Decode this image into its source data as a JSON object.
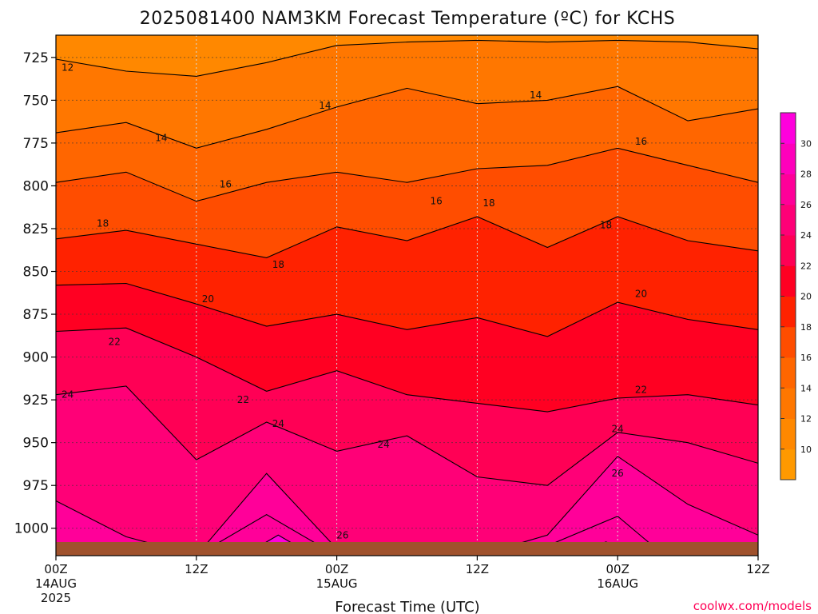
{
  "chart_data": {
    "type": "heatmap",
    "title": "2025081400 NAM3KM Forecast Temperature (ºC) for KCHS",
    "xlabel": "Forecast Time (UTC)",
    "ylabel": "",
    "x_range_hours": [
      0,
      60
    ],
    "y_range_hPa": [
      1016,
      712
    ],
    "y_axis": "pressure (hPa), decreasing upward",
    "x_ticks": [
      {
        "hour": 0,
        "label": "00Z",
        "sub1": "14AUG",
        "sub2": "2025"
      },
      {
        "hour": 12,
        "label": "12Z",
        "sub1": "",
        "sub2": ""
      },
      {
        "hour": 24,
        "label": "00Z",
        "sub1": "15AUG",
        "sub2": ""
      },
      {
        "hour": 36,
        "label": "12Z",
        "sub1": "",
        "sub2": ""
      },
      {
        "hour": 48,
        "label": "00Z",
        "sub1": "16AUG",
        "sub2": ""
      },
      {
        "hour": 60,
        "label": "12Z",
        "sub1": "",
        "sub2": ""
      }
    ],
    "y_ticks": [
      725,
      750,
      775,
      800,
      825,
      850,
      875,
      900,
      925,
      950,
      975,
      1000
    ],
    "colorbar": {
      "levels": [
        8,
        10,
        12,
        14,
        16,
        18,
        20,
        22,
        24,
        26,
        28,
        30,
        32
      ],
      "tick_labels": [
        10,
        12,
        14,
        16,
        18,
        20,
        22,
        24,
        26,
        28,
        30
      ],
      "colors": [
        "#ff9900",
        "#ff8800",
        "#ff7700",
        "#ff6600",
        "#ff4d00",
        "#ff2200",
        "#ff0022",
        "#ff0055",
        "#ff0077",
        "#ff0099",
        "#ff00bb",
        "#ff00dd"
      ]
    },
    "fill_colors": {
      "below_12": "#ff8800",
      "12_14": "#ff7700",
      "14_16": "#ff6600",
      "16_18": "#ff4d00",
      "18_20": "#ff2200",
      "20_22": "#ff0022",
      "22_24": "#ff0055",
      "24_26": "#ff0077",
      "26_28": "#ff0099",
      "28_30": "#ff00dd"
    },
    "ground_color": "#a0522d",
    "grid": true,
    "isotherms": [
      {
        "level": 12,
        "hours": [
          0,
          6,
          12,
          18,
          24,
          30,
          36,
          42,
          48,
          54,
          60
        ],
        "hPa": [
          726,
          733,
          736,
          728,
          718,
          716,
          715,
          716,
          715,
          716,
          720
        ]
      },
      {
        "level": 14,
        "hours": [
          0,
          6,
          12,
          18,
          24,
          30,
          36,
          42,
          48,
          54,
          60
        ],
        "hPa": [
          769,
          763,
          778,
          767,
          754,
          743,
          752,
          750,
          742,
          762,
          755
        ]
      },
      {
        "level": 16,
        "hours": [
          0,
          6,
          12,
          18,
          24,
          30,
          36,
          42,
          48,
          54,
          60
        ],
        "hPa": [
          798,
          792,
          809,
          798,
          792,
          798,
          790,
          788,
          778,
          788,
          798
        ]
      },
      {
        "level": 18,
        "hours": [
          0,
          6,
          12,
          18,
          24,
          30,
          36,
          42,
          48,
          54,
          60
        ],
        "hPa": [
          831,
          826,
          834,
          842,
          824,
          832,
          818,
          836,
          818,
          832,
          838
        ]
      },
      {
        "level": 20,
        "hours": [
          0,
          6,
          12,
          18,
          24,
          30,
          36,
          42,
          48,
          54,
          60
        ],
        "hPa": [
          858,
          857,
          869,
          882,
          875,
          884,
          877,
          888,
          868,
          878,
          884
        ]
      },
      {
        "level": 22,
        "hours": [
          0,
          6,
          12,
          18,
          24,
          30,
          36,
          42,
          48,
          54,
          60
        ],
        "hPa": [
          885,
          883,
          900,
          920,
          908,
          922,
          927,
          932,
          924,
          922,
          928
        ]
      },
      {
        "level": 24,
        "hours": [
          0,
          6,
          12,
          18,
          24,
          30,
          36,
          42,
          48,
          54,
          60
        ],
        "hPa": [
          922,
          917,
          960,
          938,
          955,
          946,
          970,
          975,
          944,
          950,
          962
        ]
      },
      {
        "level": 26,
        "hours": [
          0,
          6,
          12,
          18,
          24,
          30,
          36,
          42,
          48,
          54,
          60
        ],
        "hPa": [
          984,
          1005,
          1016,
          968,
          1012,
          1016,
          1016,
          1004,
          958,
          986,
          1004
        ]
      },
      {
        "level": 28,
        "hours": [
          12,
          18,
          24
        ],
        "hPa": [
          1016,
          992,
          1016
        ]
      },
      {
        "level": 28,
        "hours": [
          40,
          48,
          52
        ],
        "hPa": [
          1016,
          993,
          1016
        ]
      },
      {
        "level": 30,
        "hours": [
          16,
          19,
          22
        ],
        "hPa": [
          1016,
          1004,
          1016
        ]
      },
      {
        "level": 30,
        "hours": [
          44,
          47,
          50
        ],
        "hPa": [
          1016,
          1008,
          1016
        ]
      }
    ],
    "contour_labels": [
      {
        "text": "12",
        "hour": 1,
        "hPa": 731
      },
      {
        "text": "14",
        "hour": 9,
        "hPa": 772
      },
      {
        "text": "14",
        "hour": 23,
        "hPa": 753
      },
      {
        "text": "14",
        "hour": 41,
        "hPa": 747
      },
      {
        "text": "16",
        "hour": 14.5,
        "hPa": 799
      },
      {
        "text": "16",
        "hour": 32.5,
        "hPa": 809
      },
      {
        "text": "16",
        "hour": 50,
        "hPa": 774
      },
      {
        "text": "18",
        "hour": 4,
        "hPa": 822
      },
      {
        "text": "18",
        "hour": 19,
        "hPa": 846
      },
      {
        "text": "18",
        "hour": 37,
        "hPa": 810
      },
      {
        "text": "18",
        "hour": 47,
        "hPa": 823
      },
      {
        "text": "20",
        "hour": 13,
        "hPa": 866
      },
      {
        "text": "20",
        "hour": 50,
        "hPa": 863
      },
      {
        "text": "22",
        "hour": 5,
        "hPa": 891
      },
      {
        "text": "22",
        "hour": 16,
        "hPa": 925
      },
      {
        "text": "22",
        "hour": 50,
        "hPa": 919
      },
      {
        "text": "24",
        "hour": 1,
        "hPa": 922
      },
      {
        "text": "24",
        "hour": 19,
        "hPa": 939
      },
      {
        "text": "24",
        "hour": 28,
        "hPa": 951
      },
      {
        "text": "24",
        "hour": 48,
        "hPa": 942
      },
      {
        "text": "26",
        "hour": 24.5,
        "hPa": 1004
      },
      {
        "text": "26",
        "hour": 48,
        "hPa": 968
      }
    ]
  },
  "credit": "coolwx.com/models"
}
